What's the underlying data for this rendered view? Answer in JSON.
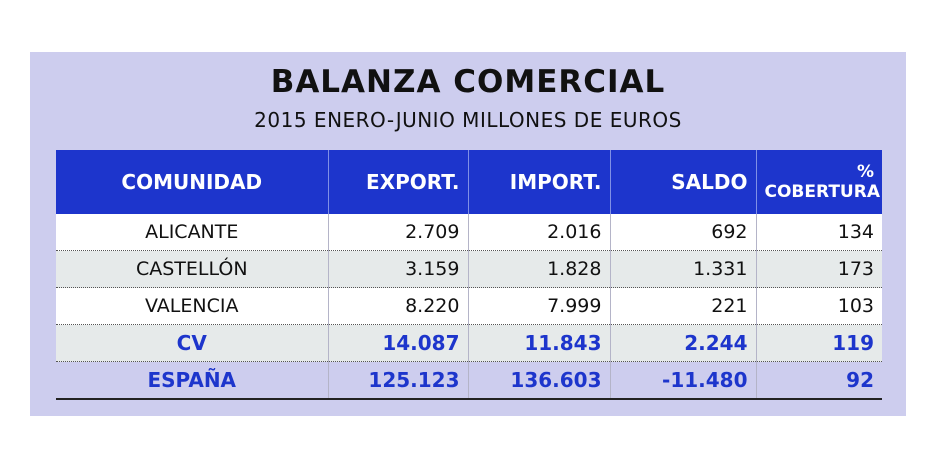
{
  "chart_data": {
    "type": "table",
    "title": "BALANZA COMERCIAL",
    "subtitle": "2015 ENERO-JUNIO MILLONES DE EUROS",
    "columns": [
      "COMUNIDAD",
      "EXPORT.",
      "IMPORT.",
      "SALDO",
      "% COBERTURA"
    ],
    "cobertura_top": "%",
    "cobertura_bottom": "COBERTURA",
    "rows": [
      {
        "comunidad": "ALICANTE",
        "export": "2.709",
        "import": "2.016",
        "saldo": "692",
        "cobertura": "134"
      },
      {
        "comunidad": "CASTELLÓN",
        "export": "3.159",
        "import": "1.828",
        "saldo": "1.331",
        "cobertura": "173"
      },
      {
        "comunidad": "VALENCIA",
        "export": "8.220",
        "import": "7.999",
        "saldo": "221",
        "cobertura": "103"
      },
      {
        "comunidad": "CV",
        "export": "14.087",
        "import": "11.843",
        "saldo": "2.244",
        "cobertura": "119"
      },
      {
        "comunidad": "ESPAÑA",
        "export": "125.123",
        "import": "136.603",
        "saldo": "-11.480",
        "cobertura": "92"
      }
    ]
  },
  "colors": {
    "header_bg": "#1d35cc",
    "panel_bg": "#cdcdee",
    "highlight_text": "#1d35cc",
    "row_alt": "#e6eaea"
  }
}
